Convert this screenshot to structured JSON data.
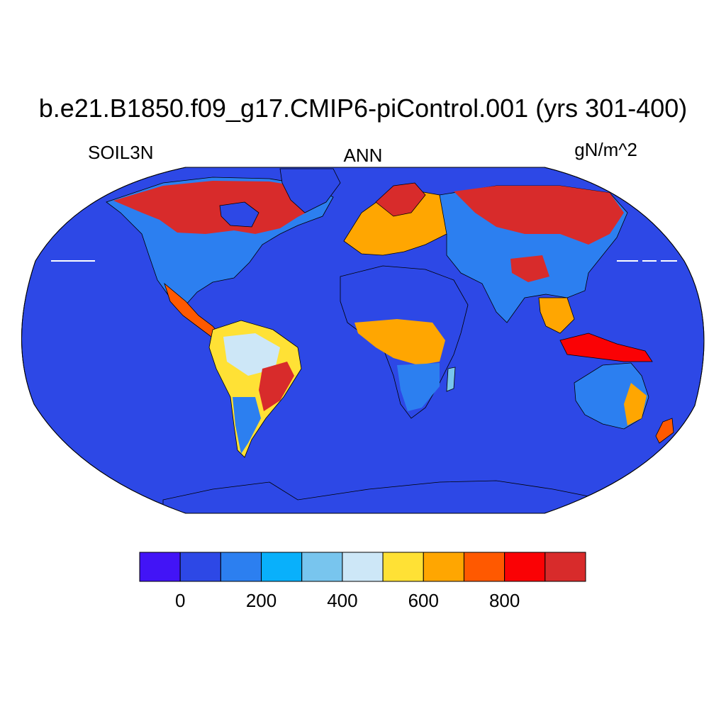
{
  "title": "b.e21.B1850.f09_g17.CMIP6-piControl.001 (yrs 301-400)",
  "left_label": "SOIL3N",
  "center_label": "ANN",
  "right_label": "gN/m^2",
  "map": {
    "projection": "Robinson",
    "field": "SOIL3N",
    "ocean_fill": "#2d48e6",
    "coastline_color": "#000000"
  },
  "colorbar": {
    "colors": [
      "#4214f6",
      "#2d48e6",
      "#2c7ff0",
      "#09b0fb",
      "#78c5ee",
      "#cde7f7",
      "#ffe135",
      "#ffa601",
      "#ff5900",
      "#fa0205",
      "#d82b2b"
    ],
    "bin_edges": [
      0,
      100,
      200,
      300,
      400,
      500,
      600,
      700,
      800,
      900
    ],
    "tick_labels": [
      "0",
      "200",
      "400",
      "600",
      "800"
    ],
    "tick_values": [
      0,
      200,
      400,
      600,
      800
    ]
  }
}
